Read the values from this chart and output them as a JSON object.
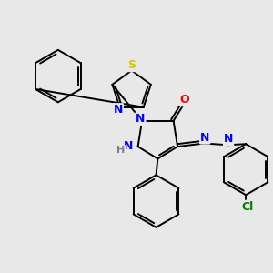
{
  "bg_color": "#e8e8e8",
  "line_color": "#000000",
  "atom_colors": {
    "N": "#0000ff",
    "O": "#ff0000",
    "S": "#cccc00",
    "Cl": "#008000",
    "H": "#808080",
    "C": "#000000"
  },
  "figsize": [
    3.0,
    3.0
  ],
  "dpi": 100
}
